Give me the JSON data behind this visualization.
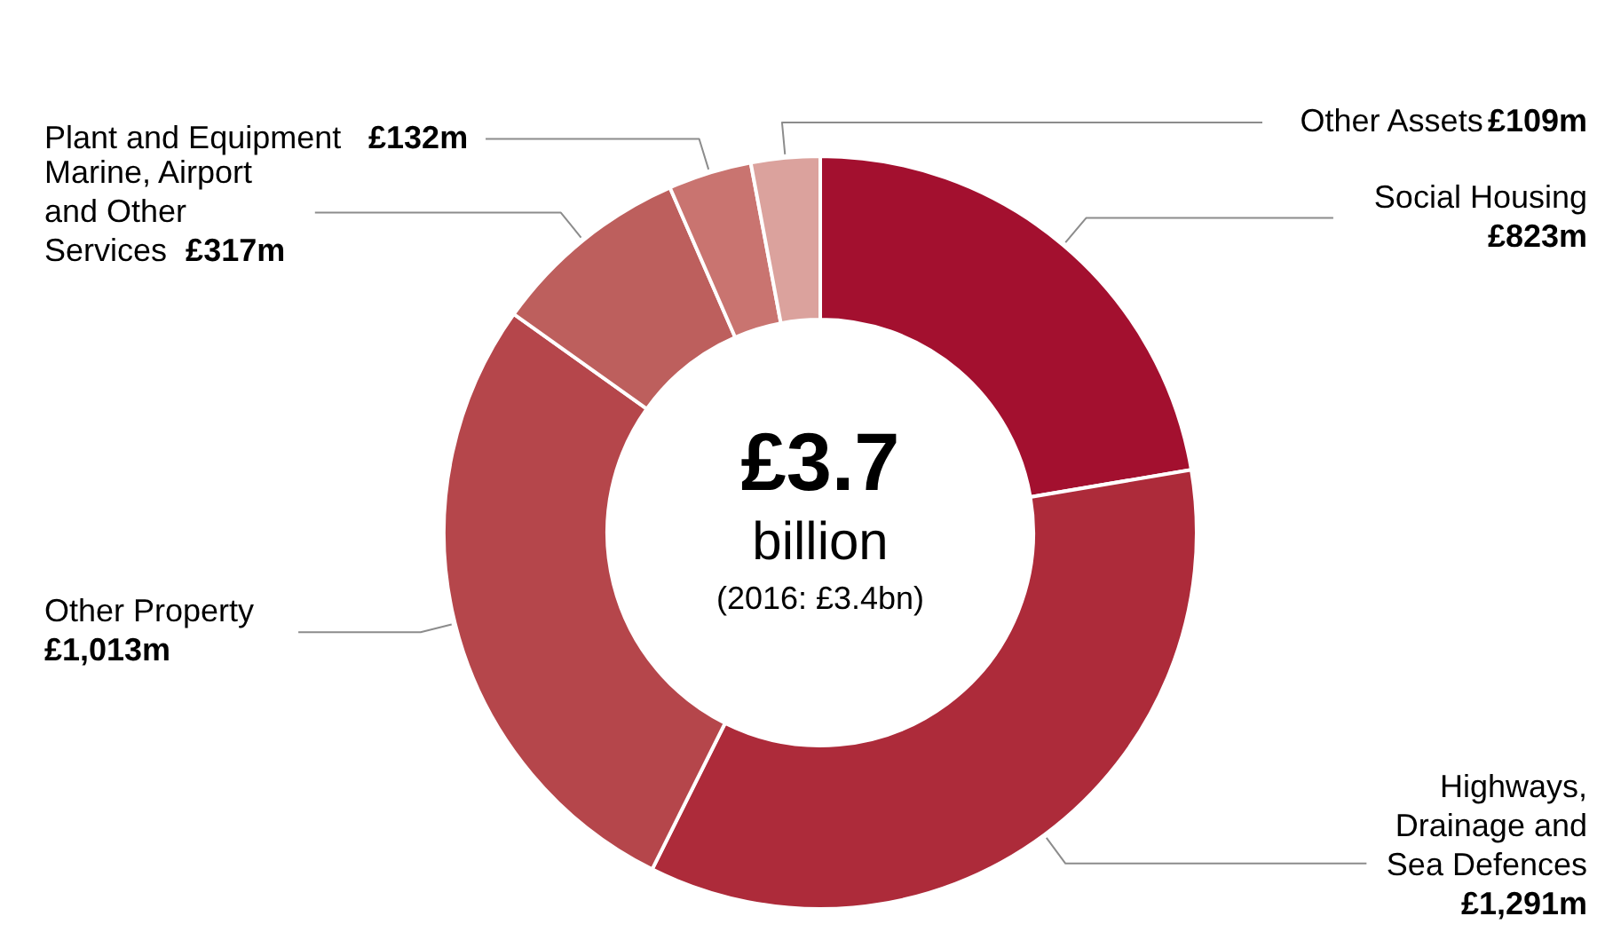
{
  "chart_data": {
    "type": "donut",
    "categories": [
      "Social Housing",
      "Highways, Drainage and Sea Defences",
      "Other Property",
      "Marine, Airport and Other Services",
      "Plant and Equipment",
      "Other Assets"
    ],
    "values": [
      823,
      1291,
      1013,
      317,
      132,
      109
    ],
    "value_labels": [
      "£823m",
      "£1,291m",
      "£1,013m",
      "£317m",
      "£132m",
      "£109m"
    ],
    "colors": [
      "#a3102f",
      "#ad2b3a",
      "#b5464b",
      "#bd5f5d",
      "#c97470",
      "#dba29d"
    ],
    "annotations": [
      "£3.7",
      "billion",
      "(2016: £3.4bn)"
    ]
  }
}
